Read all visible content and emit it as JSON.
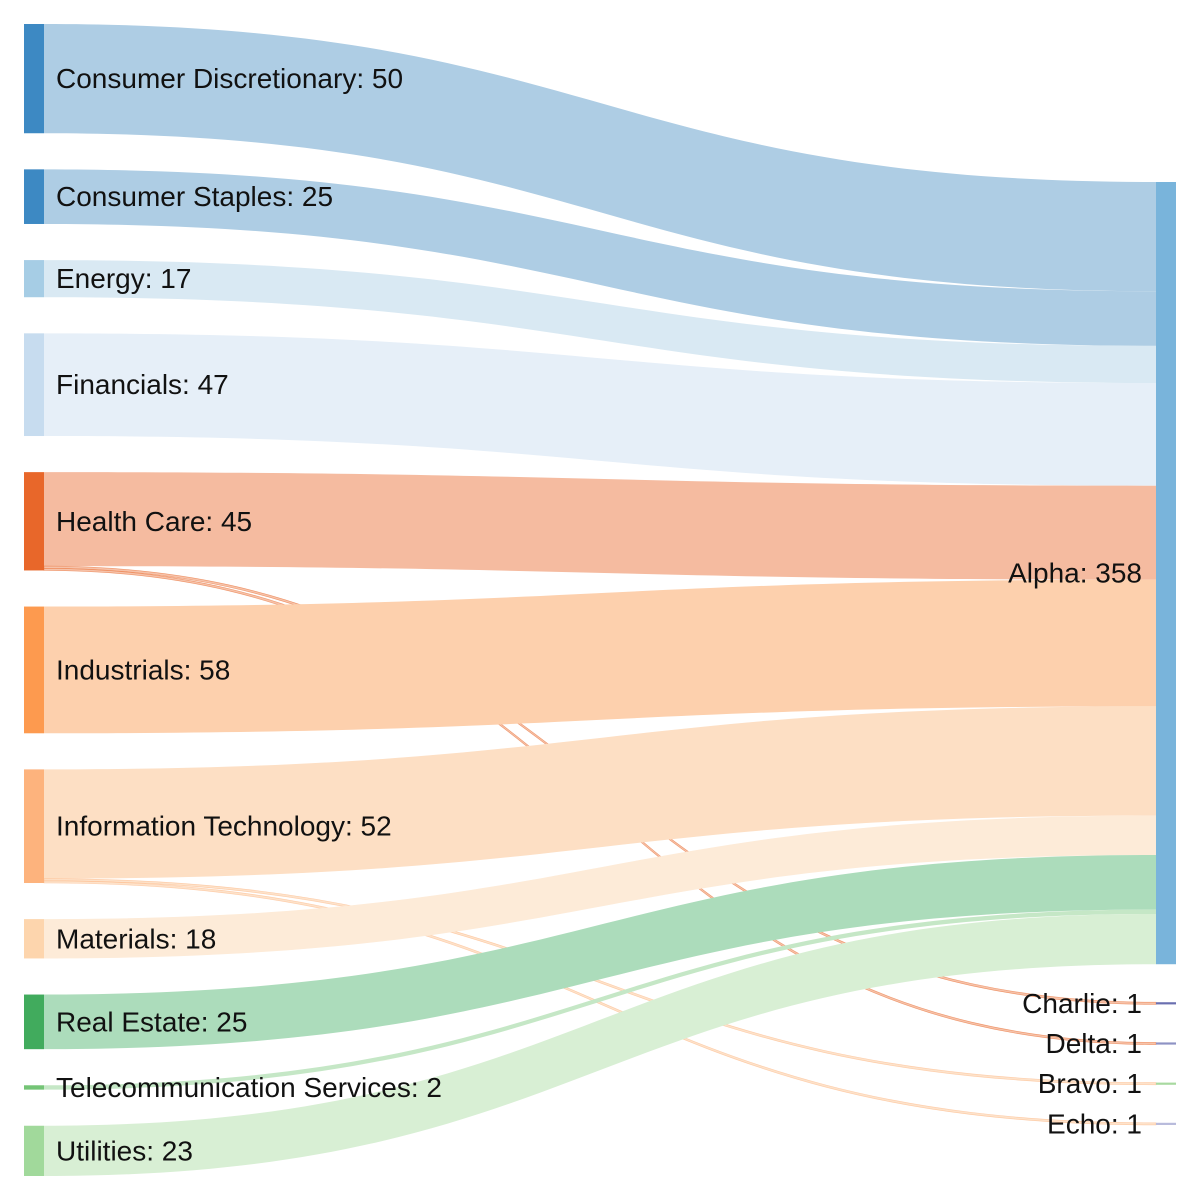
{
  "chart_data": {
    "type": "sankey",
    "sources": [
      {
        "id": "consumer-discretionary",
        "label": "Consumer Discretionary: 50",
        "name": "Consumer Discretionary",
        "value": 50,
        "color": "#3d89c3",
        "link_color": "#aecde4"
      },
      {
        "id": "consumer-staples",
        "label": "Consumer Staples: 25",
        "name": "Consumer Staples",
        "value": 25,
        "color": "#3d89c3",
        "link_color": "#aecde4"
      },
      {
        "id": "energy",
        "label": "Energy: 17",
        "name": "Energy",
        "value": 17,
        "color": "#a6cde5",
        "link_color": "#d9e9f3"
      },
      {
        "id": "financials",
        "label": "Financials: 47",
        "name": "Financials",
        "value": 47,
        "color": "#c7dcef",
        "link_color": "#e6eff8"
      },
      {
        "id": "health-care",
        "label": "Health Care: 45",
        "name": "Health Care",
        "value": 45,
        "color": "#e8672a",
        "link_color": "#f5bba0"
      },
      {
        "id": "industrials",
        "label": "Industrials: 58",
        "name": "Industrials",
        "value": 58,
        "color": "#fd9a4f",
        "link_color": "#fdd0ad"
      },
      {
        "id": "information-technology",
        "label": "Information Technology: 52",
        "name": "Information Technology",
        "value": 52,
        "color": "#fdb37d",
        "link_color": "#fddfc4"
      },
      {
        "id": "materials",
        "label": "Materials: 18",
        "name": "Materials",
        "value": 18,
        "color": "#fdd5ad",
        "link_color": "#fdebd8"
      },
      {
        "id": "real-estate",
        "label": "Real Estate: 25",
        "name": "Real Estate",
        "value": 25,
        "color": "#41ab5d",
        "link_color": "#acdcbb"
      },
      {
        "id": "telecommunication-services",
        "label": "Telecommunication Services: 2",
        "name": "Telecommunication Services",
        "value": 2,
        "color": "#74c476",
        "link_color": "#c5e7c6"
      },
      {
        "id": "utilities",
        "label": "Utilities: 23",
        "name": "Utilities",
        "value": 23,
        "color": "#a1d99b",
        "link_color": "#d8efd4"
      }
    ],
    "targets": [
      {
        "id": "alpha",
        "label": "Alpha: 358",
        "name": "Alpha",
        "value": 358,
        "color": "#79b4db"
      },
      {
        "id": "charlie",
        "label": "Charlie: 1",
        "name": "Charlie",
        "value": 1,
        "color": "#6a6fb0"
      },
      {
        "id": "delta",
        "label": "Delta: 1",
        "name": "Delta",
        "value": 1,
        "color": "#8e92c4"
      },
      {
        "id": "bravo",
        "label": "Bravo: 1",
        "name": "Bravo",
        "value": 1,
        "color": "#a8d9a0"
      },
      {
        "id": "echo",
        "label": "Echo: 1",
        "name": "Echo",
        "value": 1,
        "color": "#b8bbdc"
      }
    ],
    "links": [
      {
        "source": "consumer-discretionary",
        "target": "alpha",
        "value": 50
      },
      {
        "source": "consumer-staples",
        "target": "alpha",
        "value": 25
      },
      {
        "source": "energy",
        "target": "alpha",
        "value": 17
      },
      {
        "source": "financials",
        "target": "alpha",
        "value": 47
      },
      {
        "source": "health-care",
        "target": "alpha",
        "value": 43
      },
      {
        "source": "health-care",
        "target": "charlie",
        "value": 1
      },
      {
        "source": "health-care",
        "target": "delta",
        "value": 1
      },
      {
        "source": "industrials",
        "target": "alpha",
        "value": 58
      },
      {
        "source": "information-technology",
        "target": "alpha",
        "value": 50
      },
      {
        "source": "information-technology",
        "target": "bravo",
        "value": 1
      },
      {
        "source": "information-technology",
        "target": "echo",
        "value": 1
      },
      {
        "source": "materials",
        "target": "alpha",
        "value": 18
      },
      {
        "source": "real-estate",
        "target": "alpha",
        "value": 25
      },
      {
        "source": "telecommunication-services",
        "target": "alpha",
        "value": 2
      },
      {
        "source": "utilities",
        "target": "alpha",
        "value": 23
      }
    ]
  }
}
